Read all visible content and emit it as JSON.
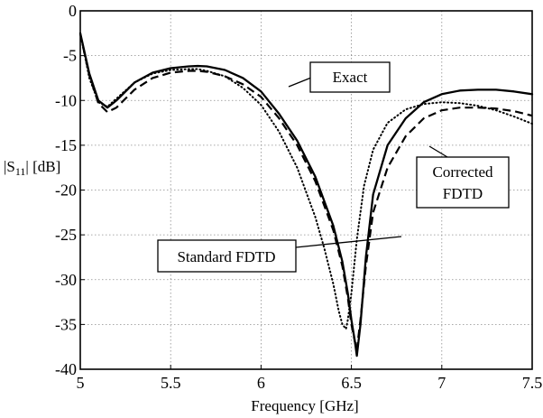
{
  "chart_data": {
    "type": "line",
    "xlabel": "Frequency [GHz]",
    "ylabel_main": "|S",
    "ylabel_sub": "11",
    "ylabel_rest": "| [dB]",
    "xlim": [
      5,
      7.5
    ],
    "ylim": [
      -40,
      0
    ],
    "x_ticks": [
      5,
      5.5,
      6,
      6.5,
      7,
      7.5
    ],
    "x_tick_labels": [
      "5",
      "5.5",
      "6",
      "6.5",
      "7",
      "7.5"
    ],
    "y_ticks": [
      0,
      -5,
      -10,
      -15,
      -20,
      -25,
      -30,
      -35,
      -40
    ],
    "y_tick_labels": [
      "0",
      "-5",
      "-10",
      "-15",
      "-20",
      "-25",
      "-30",
      "-35",
      "-40"
    ],
    "grid": true,
    "series": [
      {
        "name": "Exact",
        "style": "solid",
        "color": "#000000",
        "x": [
          5.0,
          5.05,
          5.1,
          5.15,
          5.2,
          5.3,
          5.4,
          5.5,
          5.6,
          5.65,
          5.7,
          5.8,
          5.9,
          6.0,
          6.1,
          6.2,
          6.3,
          6.4,
          6.45,
          6.48,
          6.5,
          6.52,
          6.53,
          6.55,
          6.58,
          6.62,
          6.7,
          6.8,
          6.9,
          7.0,
          7.1,
          7.2,
          7.3,
          7.4,
          7.5
        ],
        "y": [
          -2.5,
          -7.0,
          -10.0,
          -10.8,
          -10.0,
          -8.0,
          -6.9,
          -6.4,
          -6.2,
          -6.15,
          -6.2,
          -6.6,
          -7.5,
          -9.0,
          -11.5,
          -14.5,
          -18.5,
          -24.0,
          -28.0,
          -31.5,
          -34.5,
          -37.0,
          -38.5,
          -35.0,
          -27.5,
          -20.5,
          -15.0,
          -12.0,
          -10.2,
          -9.3,
          -8.9,
          -8.8,
          -8.8,
          -9.0,
          -9.3
        ]
      },
      {
        "name": "Corrected FDTD",
        "style": "dashed",
        "color": "#000000",
        "x": [
          5.0,
          5.05,
          5.1,
          5.15,
          5.2,
          5.3,
          5.4,
          5.5,
          5.6,
          5.65,
          5.7,
          5.8,
          5.9,
          6.0,
          6.1,
          6.2,
          6.3,
          6.4,
          6.45,
          6.48,
          6.5,
          6.52,
          6.53,
          6.55,
          6.58,
          6.62,
          6.7,
          6.8,
          6.9,
          7.0,
          7.1,
          7.2,
          7.3,
          7.4,
          7.5
        ],
        "y": [
          -2.6,
          -7.2,
          -10.3,
          -11.3,
          -10.8,
          -8.8,
          -7.5,
          -6.9,
          -6.7,
          -6.7,
          -6.8,
          -7.3,
          -8.2,
          -9.6,
          -12.0,
          -15.0,
          -19.0,
          -24.5,
          -28.5,
          -32.0,
          -35.0,
          -37.0,
          -37.8,
          -34.5,
          -28.5,
          -22.5,
          -17.5,
          -14.0,
          -12.0,
          -11.1,
          -10.8,
          -10.8,
          -10.9,
          -11.2,
          -11.7
        ]
      },
      {
        "name": "Standard FDTD",
        "style": "dotted",
        "color": "#000000",
        "x": [
          5.0,
          5.05,
          5.1,
          5.15,
          5.2,
          5.3,
          5.4,
          5.5,
          5.6,
          5.65,
          5.7,
          5.8,
          5.9,
          6.0,
          6.1,
          6.2,
          6.3,
          6.35,
          6.4,
          6.43,
          6.45,
          6.47,
          6.48,
          6.5,
          6.53,
          6.57,
          6.62,
          6.7,
          6.8,
          6.9,
          7.0,
          7.1,
          7.2,
          7.3,
          7.4,
          7.5
        ],
        "y": [
          -2.5,
          -7.5,
          -10.2,
          -10.7,
          -9.8,
          -8.0,
          -7.0,
          -6.6,
          -6.5,
          -6.5,
          -6.7,
          -7.3,
          -8.6,
          -10.5,
          -13.5,
          -17.5,
          -23.0,
          -26.5,
          -30.5,
          -33.5,
          -35.0,
          -35.5,
          -34.5,
          -31.5,
          -25.5,
          -19.5,
          -15.5,
          -12.5,
          -11.0,
          -10.4,
          -10.2,
          -10.3,
          -10.6,
          -11.1,
          -11.8,
          -12.6
        ]
      }
    ],
    "annotations": [
      {
        "lines": [
          "Exact"
        ]
      },
      {
        "lines": [
          "Corrected",
          "FDTD"
        ]
      },
      {
        "lines": [
          "Standard FDTD"
        ]
      }
    ]
  }
}
